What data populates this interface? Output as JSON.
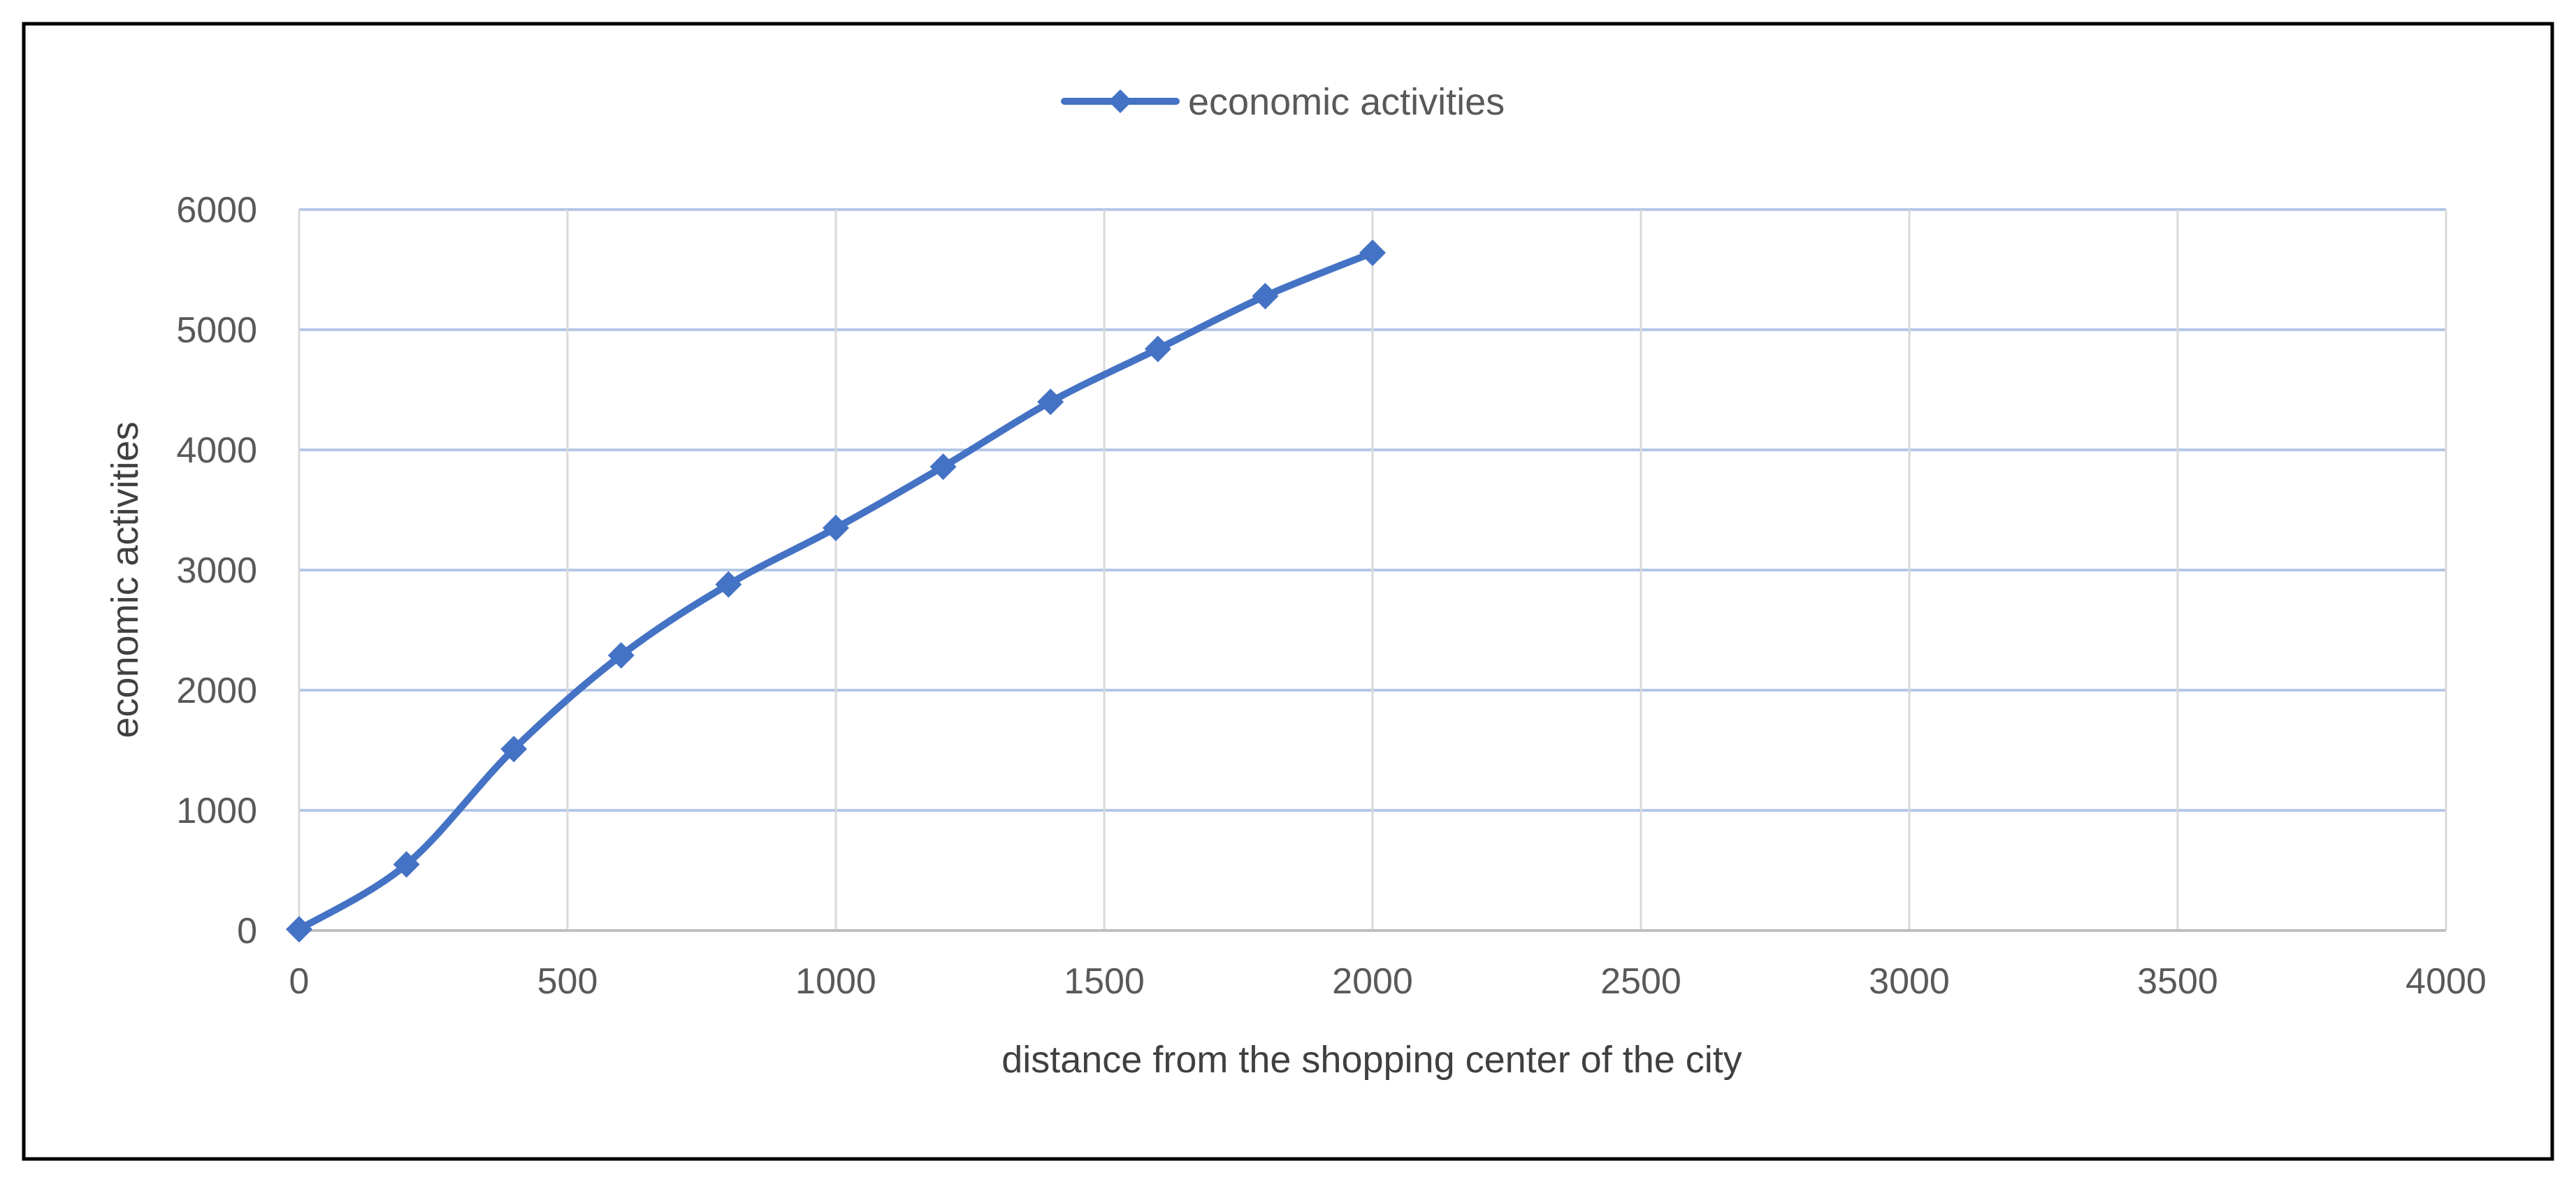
{
  "chart_data": {
    "type": "scatter",
    "title": "",
    "xlabel": "distance from the shopping center of the city",
    "ylabel": "economic activities",
    "xlim": [
      0,
      4000
    ],
    "ylim": [
      0,
      6000
    ],
    "x_ticks": [
      "0",
      "500",
      "1000",
      "1500",
      "2000",
      "2500",
      "3000",
      "3500",
      "4000"
    ],
    "y_ticks": [
      "0",
      "1000",
      "2000",
      "3000",
      "4000",
      "5000",
      "6000"
    ],
    "grid": true,
    "legend_position": "top-center",
    "line_style": "smooth",
    "marker": "diamond",
    "series": [
      {
        "name": "economic activities",
        "color": "#4472C4",
        "x": [
          0,
          200,
          400,
          600,
          800,
          1000,
          1200,
          1400,
          1600,
          1800,
          2000
        ],
        "y": [
          10,
          550,
          1510,
          2290,
          2880,
          3350,
          3860,
          4400,
          4840,
          5280,
          5640
        ]
      }
    ],
    "border": true,
    "gridline_color": "#B4C7E7",
    "axis_line_color": "#BFBFBF"
  }
}
